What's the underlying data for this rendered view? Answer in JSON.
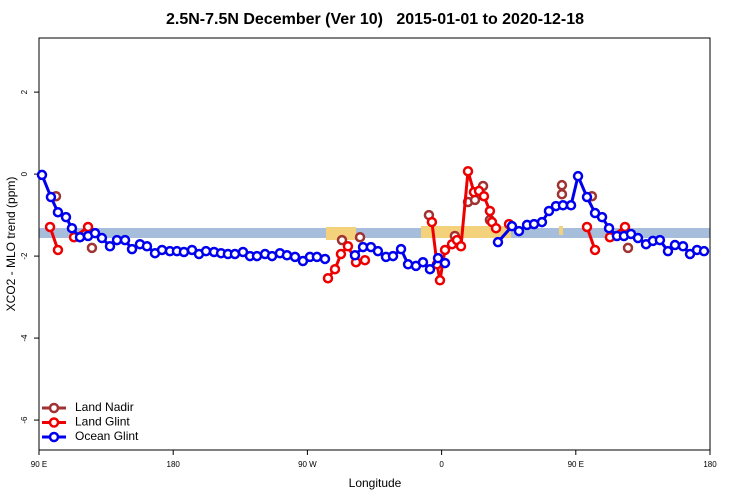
{
  "chart_data": {
    "type": "line",
    "title": "2.5N-7.5N December (Ver 10)   2015-01-01 to 2020-12-18",
    "x_label": "Longitude",
    "y_label": "XCO2 - MLO trend (ppm)",
    "xlim": [
      90,
      540
    ],
    "xticks": [
      {
        "value": 90,
        "label": "90 E"
      },
      180,
      {
        "value": 270,
        "label": "90 W"
      },
      {
        "value": 360,
        "label": "0"
      },
      {
        "value": 450,
        "label": "90 E"
      },
      {
        "value": 540,
        "label": "180"
      }
    ],
    "ylim": [
      -6.73,
      3.32
    ],
    "yticks": [
      -6,
      -4,
      -2,
      0,
      2
    ],
    "legend": "bottom-left",
    "series": [
      {
        "name": "Land Nadir",
        "color": "#a03232",
        "connected": false,
        "x": [
          101.4,
          125.5,
          293.2,
          305.3,
          351.5,
          368.9,
          377.7,
          382.4,
          387.8,
          392.4,
          440.7,
          440.7,
          460.8,
          485.0
        ],
        "values": [
          -0.54,
          -1.8,
          -1.61,
          -1.54,
          -1.0,
          -1.51,
          -0.68,
          -0.63,
          -0.29,
          -1.12,
          -0.27,
          -0.49,
          -0.54,
          -1.8
        ]
      },
      {
        "name": "Land Glint",
        "color": "#ee0000",
        "connected": true,
        "x": [
          97.4,
          102.7,
          null,
          113.5,
          122.9,
          null,
          283.8,
          288.5,
          292.5,
          297.2,
          302.6,
          null,
          308.6,
          null,
          353.5,
          356.9,
          358.9,
          362.3,
          367.0,
          370.3,
          373.0,
          377.7,
          381.7,
          385.1,
          388.4,
          392.4,
          393.8,
          396.5,
          null,
          405.2,
          null,
          457.5,
          462.9,
          null,
          472.9,
          483.0
        ],
        "values": [
          -1.29,
          -1.85,
          null,
          -1.54,
          -1.29,
          null,
          -2.54,
          -2.32,
          -1.95,
          -1.76,
          -2.15,
          null,
          -2.1,
          null,
          -1.17,
          -2.2,
          -2.59,
          -1.85,
          -1.71,
          -1.61,
          -1.76,
          0.07,
          -0.44,
          -0.41,
          -0.54,
          -0.9,
          -1.17,
          -1.32,
          null,
          -1.22,
          null,
          -1.29,
          -1.85,
          null,
          -1.54,
          -1.29
        ]
      },
      {
        "name": "Ocean Glint",
        "color": "#0000ee",
        "connected": true,
        "x": [
          92.0,
          98.0,
          102.7,
          108.1,
          112.1,
          117.5,
          122.9,
          127.6,
          132.2,
          137.6,
          142.3,
          147.7,
          152.4,
          157.7,
          162.4,
          167.8,
          172.5,
          177.8,
          182.5,
          187.2,
          192.6,
          197.3,
          202.0,
          207.4,
          212.1,
          216.7,
          221.4,
          226.8,
          231.5,
          236.2,
          241.6,
          246.3,
          251.6,
          256.3,
          261.7,
          267.0,
          271.7,
          276.4,
          281.8,
          null,
          301.9,
          307.3,
          312.6,
          317.3,
          322.7,
          327.4,
          332.8,
          337.5,
          342.8,
          347.5,
          352.2,
          357.6,
          362.3,
          null,
          397.8,
          407.2,
          411.9,
          417.3,
          422.0,
          427.3,
          432.0,
          436.7,
          441.4,
          446.8,
          451.5,
          457.5,
          462.9,
          467.6,
          472.3,
          477.6,
          482.3,
          487.0,
          491.7,
          497.1,
          501.7,
          506.4,
          511.8,
          516.5,
          521.9,
          526.6,
          531.3,
          536.0
        ],
        "values": [
          -0.02,
          -0.56,
          -0.93,
          -1.05,
          -1.32,
          -1.54,
          -1.51,
          -1.44,
          -1.56,
          -1.76,
          -1.61,
          -1.61,
          -1.83,
          -1.71,
          -1.76,
          -1.93,
          -1.85,
          -1.88,
          -1.88,
          -1.9,
          -1.85,
          -1.95,
          -1.88,
          -1.9,
          -1.93,
          -1.95,
          -1.95,
          -1.9,
          -2.0,
          -2.0,
          -1.95,
          -2.0,
          -1.93,
          -1.98,
          -2.02,
          -2.12,
          -2.02,
          -2.02,
          -2.07,
          null,
          -1.98,
          -1.78,
          -1.78,
          -1.88,
          -2.02,
          -2.0,
          -1.83,
          -2.2,
          -2.24,
          -2.15,
          -2.32,
          -2.05,
          -2.17,
          null,
          -1.66,
          -1.27,
          -1.39,
          -1.24,
          -1.22,
          -1.17,
          -0.9,
          -0.78,
          -0.76,
          -0.76,
          -0.05,
          -0.56,
          -0.95,
          -1.05,
          -1.32,
          -1.51,
          -1.51,
          -1.46,
          -1.56,
          -1.71,
          -1.63,
          -1.61,
          -1.88,
          -1.73,
          -1.76,
          -1.95,
          -1.85,
          -1.88
        ]
      }
    ]
  }
}
